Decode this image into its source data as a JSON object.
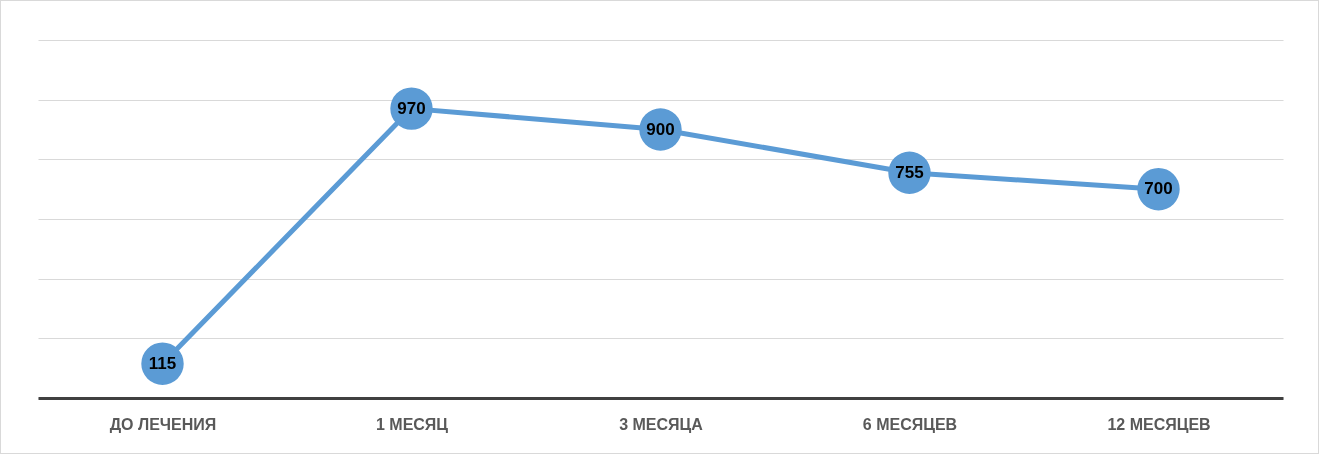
{
  "chart_data": {
    "type": "line",
    "categories": [
      "ДО ЛЕЧЕНИЯ",
      "1 МЕСЯЦ",
      "3 МЕСЯЦА",
      "6 МЕСЯЦЕВ",
      "12 МЕСЯЦЕВ"
    ],
    "series": [
      {
        "color": "#5b9bd5",
        "values": [
          115,
          970,
          900,
          755,
          700
        ]
      }
    ],
    "ylim": [
      0,
      1200
    ],
    "yticks": [
      {
        "value": 0,
        "label": null
      },
      {
        "value": 200,
        "label": null
      },
      {
        "value": 400,
        "label": null
      },
      {
        "value": 600,
        "label": null
      },
      {
        "value": 800,
        "label": null
      },
      {
        "value": 1000,
        "label": null
      },
      {
        "value": 1200,
        "label": null
      }
    ],
    "tick_labels": "x",
    "grid": "y",
    "data_labels": true,
    "marker": "circle",
    "line_style": "solid",
    "legend": false
  }
}
